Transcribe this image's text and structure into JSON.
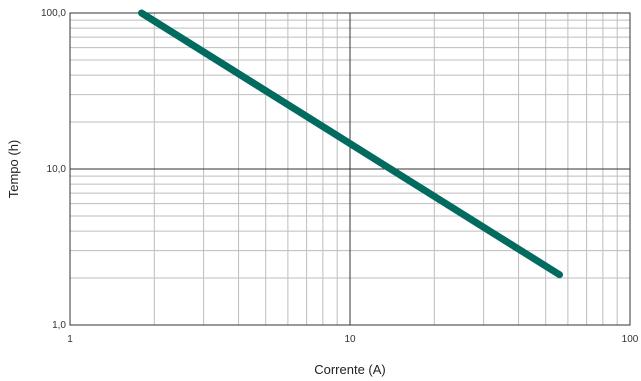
{
  "chart_data": {
    "type": "line",
    "title": "",
    "xlabel": "Corrente (A)",
    "ylabel": "Tempo (h)",
    "x_scale": "log",
    "y_scale": "log",
    "xlim": [
      1,
      100
    ],
    "ylim": [
      1,
      100
    ],
    "x_ticks": [
      {
        "value": 1,
        "label": "1"
      },
      {
        "value": 10,
        "label": "10"
      },
      {
        "value": 100,
        "label": "100"
      }
    ],
    "y_ticks": [
      {
        "value": 1,
        "label": "1,0"
      },
      {
        "value": 10,
        "label": "10,0"
      },
      {
        "value": 100,
        "label": "100,0"
      }
    ],
    "grid": true,
    "legend": "none",
    "series": [
      {
        "color": "#006b5e",
        "x": [
          1.8,
          56
        ],
        "y": [
          100,
          2.1
        ]
      }
    ]
  }
}
